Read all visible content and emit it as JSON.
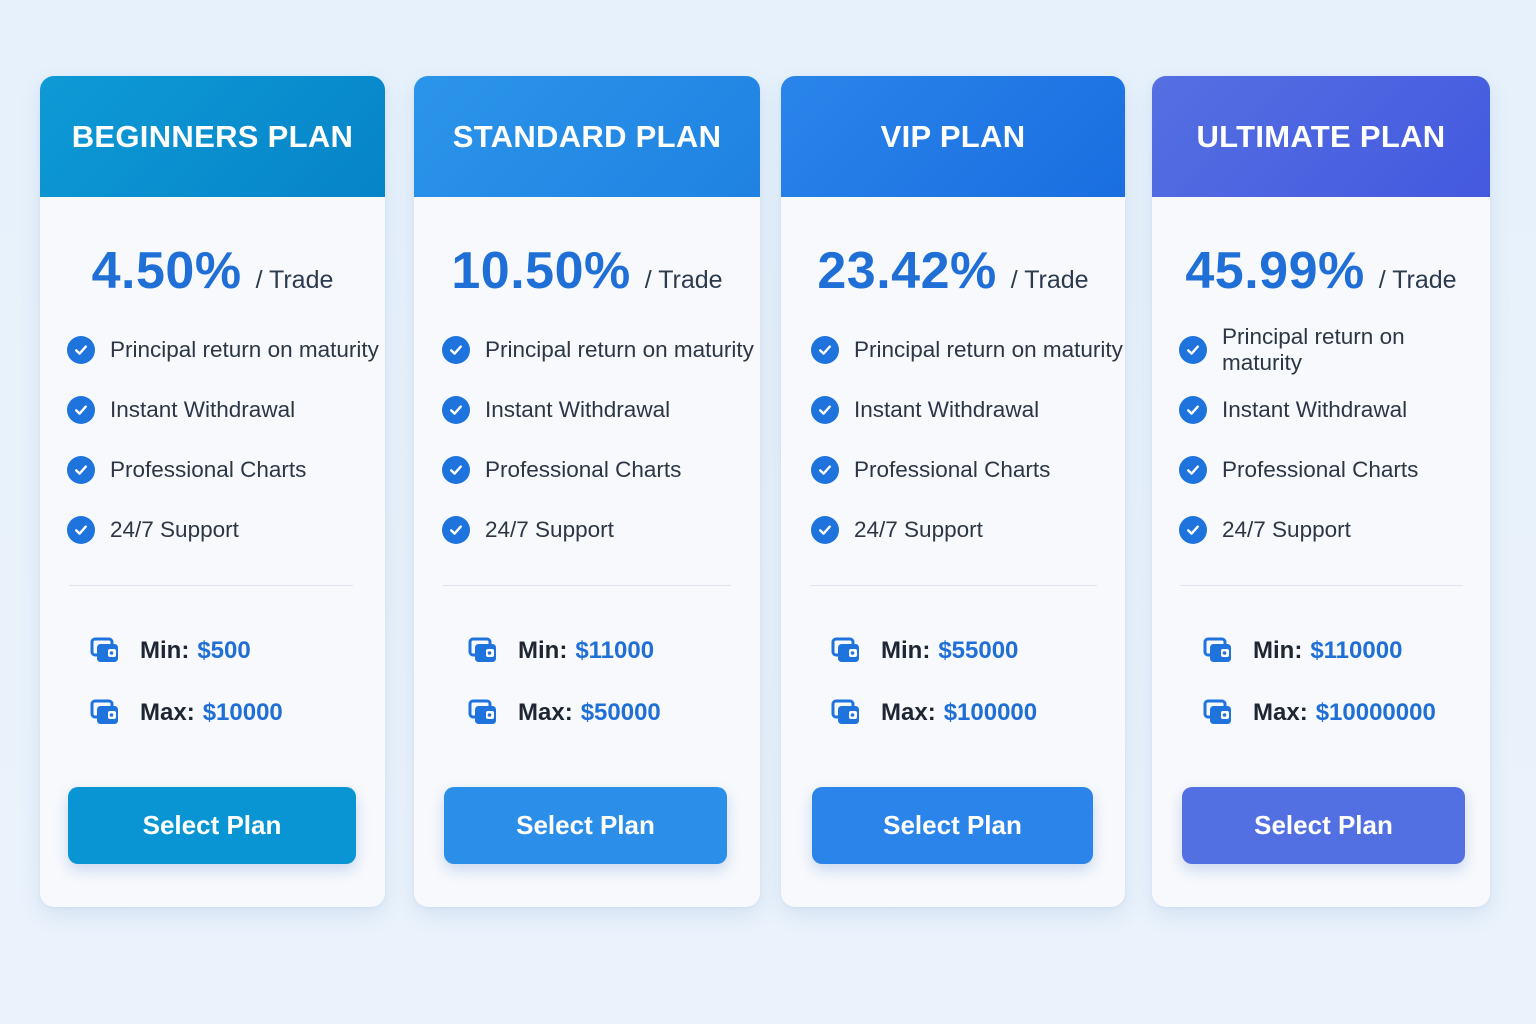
{
  "plans": [
    {
      "title": "BEGINNERS PLAN",
      "rate": "4.50%",
      "per": "/ Trade",
      "features": [
        "Principal return on maturity",
        "Instant Withdrawal",
        "Professional Charts",
        "24/7 Support"
      ],
      "min_label": "Min:",
      "min_value": "$500",
      "max_label": "Max:",
      "max_value": "$10000",
      "button_label": "Select Plan",
      "header_color_start": "#0e9ad6",
      "header_color_end": "#0684c8",
      "button_color": "#0994d3"
    },
    {
      "title": "STANDARD PLAN",
      "rate": "10.50%",
      "per": "/ Trade",
      "features": [
        "Principal return on maturity",
        "Instant Withdrawal",
        "Professional Charts",
        "24/7 Support"
      ],
      "min_label": "Min:",
      "min_value": "$11000",
      "max_label": "Max:",
      "max_value": "$50000",
      "button_label": "Select Plan",
      "header_color_start": "#2b95ea",
      "header_color_end": "#1f82e2",
      "button_color": "#2b8ee8"
    },
    {
      "title": "VIP PLAN",
      "rate": "23.42%",
      "per": "/ Trade",
      "features": [
        "Principal return on maturity",
        "Instant Withdrawal",
        "Professional Charts",
        "24/7 Support"
      ],
      "min_label": "Min:",
      "min_value": "$55000",
      "max_label": "Max:",
      "max_value": "$100000",
      "button_label": "Select Plan",
      "header_color_start": "#2a85ea",
      "header_color_end": "#1a6ee0",
      "button_color": "#2a84ea"
    },
    {
      "title": "ULTIMATE PLAN",
      "rate": "45.99%",
      "per": "/ Trade",
      "features": [
        "Principal return on maturity",
        "Instant Withdrawal",
        "Professional Charts",
        "24/7 Support"
      ],
      "min_label": "Min:",
      "min_value": "$110000",
      "max_label": "Max:",
      "max_value": "$10000000",
      "button_label": "Select Plan",
      "header_color_start": "#5470e2",
      "header_color_end": "#4459df",
      "button_color": "#5370e2"
    }
  ],
  "icons": {
    "feature": "check-circle-icon",
    "limit": "wallet-icon"
  }
}
